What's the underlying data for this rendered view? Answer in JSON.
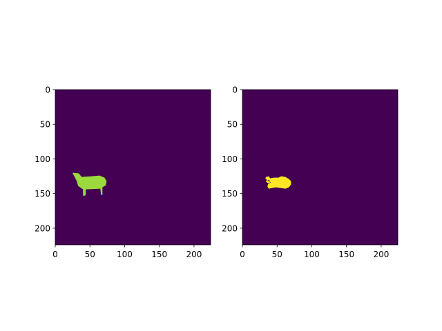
{
  "figure": {
    "background": "#ffffff"
  },
  "chart_data": [
    {
      "type": "heatmap",
      "extent": [
        0,
        224,
        224,
        0
      ],
      "xlim": [
        0,
        224
      ],
      "ylim": [
        224,
        0
      ],
      "xticks": [
        0,
        50,
        100,
        150,
        200
      ],
      "yticks": [
        0,
        50,
        100,
        150,
        200
      ],
      "xtick_labels": [
        "0",
        "50",
        "100",
        "150",
        "200"
      ],
      "ytick_labels": [
        "0",
        "50",
        "100",
        "150",
        "200"
      ],
      "background_value": 0,
      "background_color": "#440154",
      "mask_color": "#9bd93c",
      "mask_label": "sheep-shaped region (value > 0)",
      "mask_polygon": [
        [
          26,
          120
        ],
        [
          34,
          121
        ],
        [
          38,
          126
        ],
        [
          52,
          125
        ],
        [
          64,
          124
        ],
        [
          71,
          127
        ],
        [
          74,
          132
        ],
        [
          73,
          138
        ],
        [
          68,
          141
        ],
        [
          68,
          146
        ],
        [
          68,
          152
        ],
        [
          66,
          152
        ],
        [
          65,
          143
        ],
        [
          44,
          144
        ],
        [
          44,
          151
        ],
        [
          43,
          153
        ],
        [
          40,
          153
        ],
        [
          40,
          144
        ],
        [
          33,
          139
        ],
        [
          31,
          132
        ],
        [
          27,
          124
        ],
        [
          25,
          121
        ]
      ],
      "title": "",
      "xlabel": "",
      "ylabel": ""
    },
    {
      "type": "heatmap",
      "extent": [
        0,
        224,
        224,
        0
      ],
      "xlim": [
        0,
        224
      ],
      "ylim": [
        224,
        0
      ],
      "xticks": [
        0,
        50,
        100,
        150,
        200
      ],
      "yticks": [
        0,
        50,
        100,
        150,
        200
      ],
      "xtick_labels": [
        "0",
        "50",
        "100",
        "150",
        "200"
      ],
      "ytick_labels": [
        "0",
        "50",
        "100",
        "150",
        "200"
      ],
      "background_value": 0,
      "background_color": "#440154",
      "mask_color": "#fde725",
      "mask_label": "predicted region (value > 0)",
      "mask_polygon": [
        [
          34,
          126
        ],
        [
          38,
          125
        ],
        [
          40,
          128
        ],
        [
          45,
          127
        ],
        [
          52,
          127
        ],
        [
          56,
          125
        ],
        [
          62,
          126
        ],
        [
          67,
          129
        ],
        [
          70,
          132
        ],
        [
          70,
          137
        ],
        [
          67,
          141
        ],
        [
          62,
          143
        ],
        [
          55,
          142
        ],
        [
          48,
          141
        ],
        [
          43,
          142
        ],
        [
          38,
          143
        ],
        [
          36,
          140
        ],
        [
          37,
          136
        ],
        [
          41,
          134
        ],
        [
          38,
          132
        ],
        [
          35,
          130
        ],
        [
          33,
          128
        ]
      ],
      "mask_hole": [
        [
          35,
          130
        ],
        [
          39,
          131
        ],
        [
          40,
          134
        ],
        [
          37,
          135
        ],
        [
          34,
          133
        ]
      ],
      "title": "",
      "xlabel": "",
      "ylabel": ""
    }
  ]
}
